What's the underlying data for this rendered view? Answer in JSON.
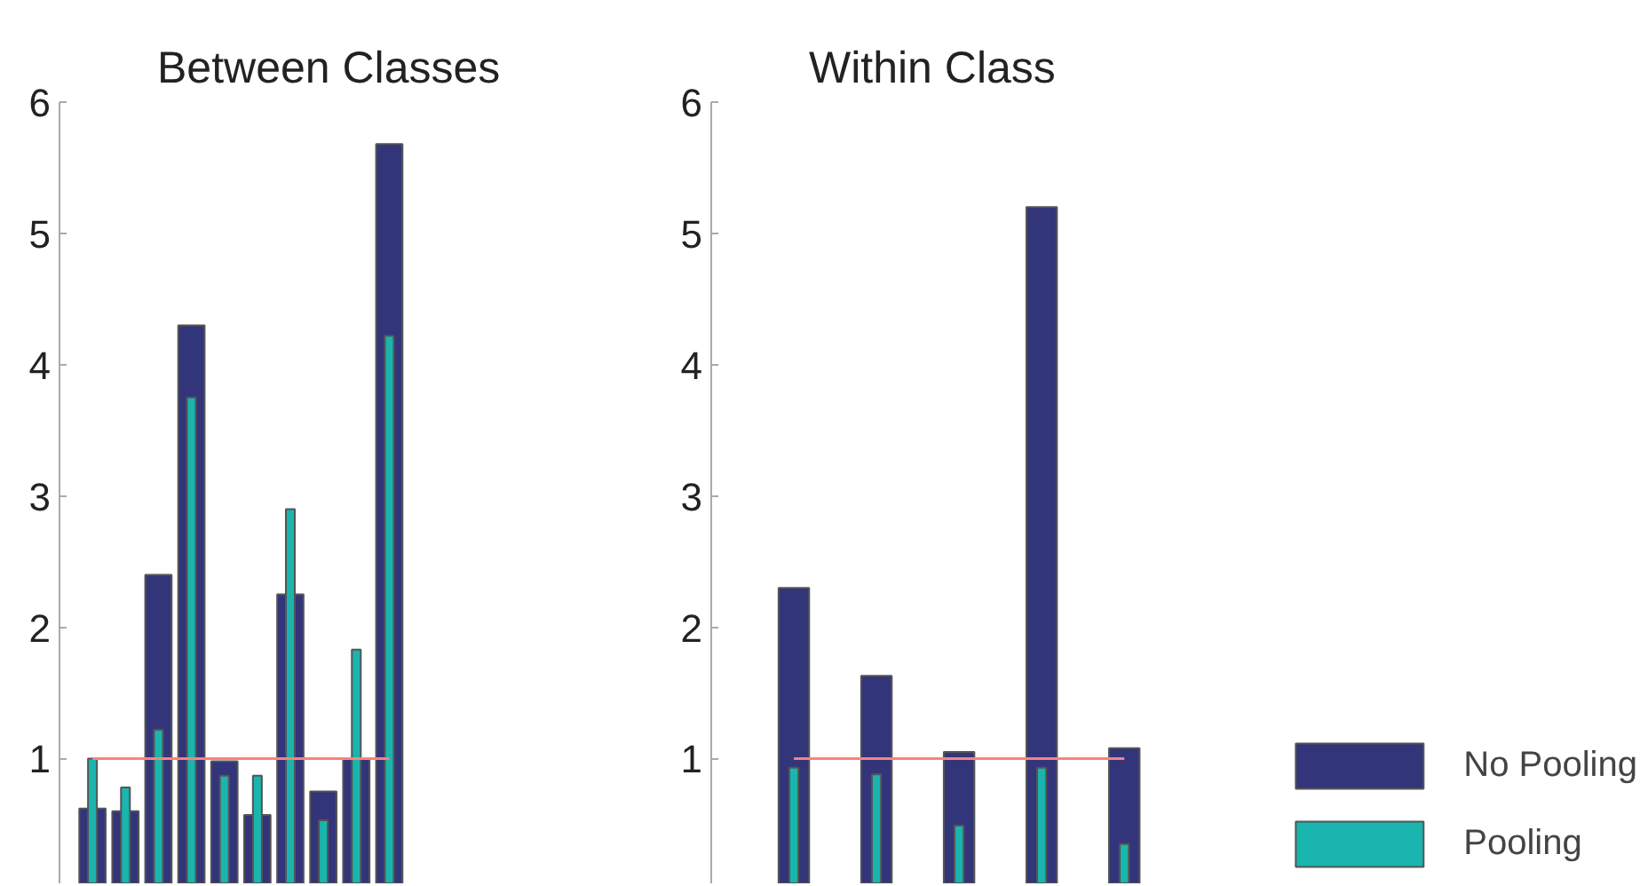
{
  "chart_data": [
    {
      "type": "bar",
      "title": "Between Classes",
      "categories": [
        null,
        null,
        null,
        null,
        null,
        null,
        null,
        null,
        null,
        null
      ],
      "series": [
        {
          "color": "#32357a",
          "values": [
            0.62,
            0.6,
            2.4,
            4.3,
            0.98,
            0.57,
            2.25,
            0.75,
            1.0,
            5.68
          ]
        },
        {
          "color": "#19b5ae",
          "values": [
            1.0,
            0.78,
            1.22,
            3.75,
            0.87,
            0.87,
            2.9,
            0.53,
            1.83,
            4.22
          ]
        }
      ],
      "ylim": [
        0.05,
        6
      ],
      "yticks": [
        1,
        2,
        3,
        4,
        5,
        6
      ],
      "tick_labels": "y",
      "grid": false,
      "legend": false,
      "ref_lines": [
        {
          "axis": "y",
          "value": 1,
          "color": "#ff8080"
        }
      ]
    },
    {
      "type": "bar",
      "title": "Within Class",
      "categories": [
        null,
        null,
        null,
        null,
        null
      ],
      "series": [
        {
          "name": "No Pooling",
          "color": "#32357a",
          "values": [
            2.3,
            1.63,
            1.05,
            5.2,
            1.08
          ]
        },
        {
          "name": "Pooling",
          "color": "#19b5ae",
          "values": [
            0.93,
            0.88,
            0.49,
            0.93,
            0.35
          ]
        }
      ],
      "ylim": [
        0.05,
        6
      ],
      "yticks": [
        1,
        2,
        3,
        4,
        5,
        6
      ],
      "tick_labels": "y",
      "grid": false,
      "legend": "bottom right",
      "ref_lines": [
        {
          "axis": "y",
          "value": 1,
          "color": "#ff8080"
        }
      ]
    }
  ]
}
